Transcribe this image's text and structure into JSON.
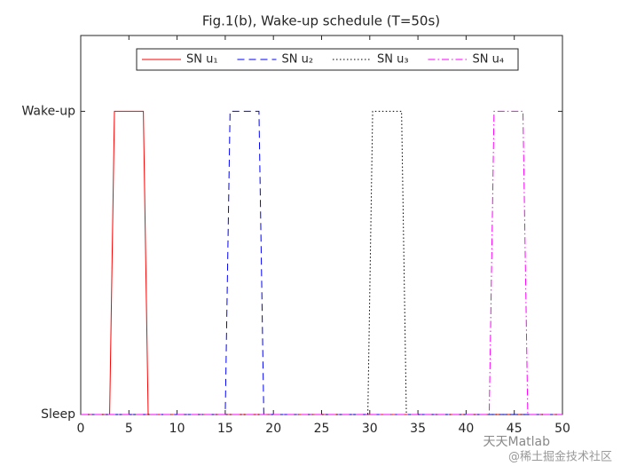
{
  "chart_data": {
    "type": "line",
    "title": "Fig.1(b), Wake-up schedule (T=50s)",
    "xlim": [
      0,
      50
    ],
    "xticks": [
      0,
      5,
      10,
      15,
      20,
      25,
      30,
      35,
      40,
      45,
      50
    ],
    "ylim": [
      0,
      1.25
    ],
    "yticks": [
      {
        "value": 0,
        "label": "Sleep"
      },
      {
        "value": 1,
        "label": "Wake-up"
      }
    ],
    "grid": false,
    "legend": "top",
    "series": [
      {
        "name": "SN u₁",
        "color": "#ff0000",
        "dash": "solid",
        "x": [
          0,
          3,
          3.5,
          6.5,
          7,
          50
        ],
        "values": [
          0,
          0,
          1,
          1,
          0,
          0
        ]
      },
      {
        "name": "SN u₂",
        "color": "#0000ff",
        "dash": "dashed",
        "x": [
          0,
          15,
          15.5,
          18.5,
          19,
          50
        ],
        "values": [
          0,
          0,
          1,
          1,
          0,
          0
        ]
      },
      {
        "name": "SN u₃",
        "color": "#000000",
        "dash": "dotted",
        "x": [
          0,
          29.8,
          30.3,
          33.3,
          33.8,
          50
        ],
        "values": [
          0,
          0,
          1,
          1,
          0,
          0
        ]
      },
      {
        "name": "SN u₄",
        "color": "#ff00ff",
        "dash": "dashdot",
        "x": [
          0,
          42.4,
          42.9,
          45.9,
          46.4,
          50
        ],
        "values": [
          0,
          0,
          1,
          1,
          0,
          0
        ]
      }
    ]
  },
  "watermark": [
    "天天Matlab",
    "@稀土掘金技术社区"
  ]
}
